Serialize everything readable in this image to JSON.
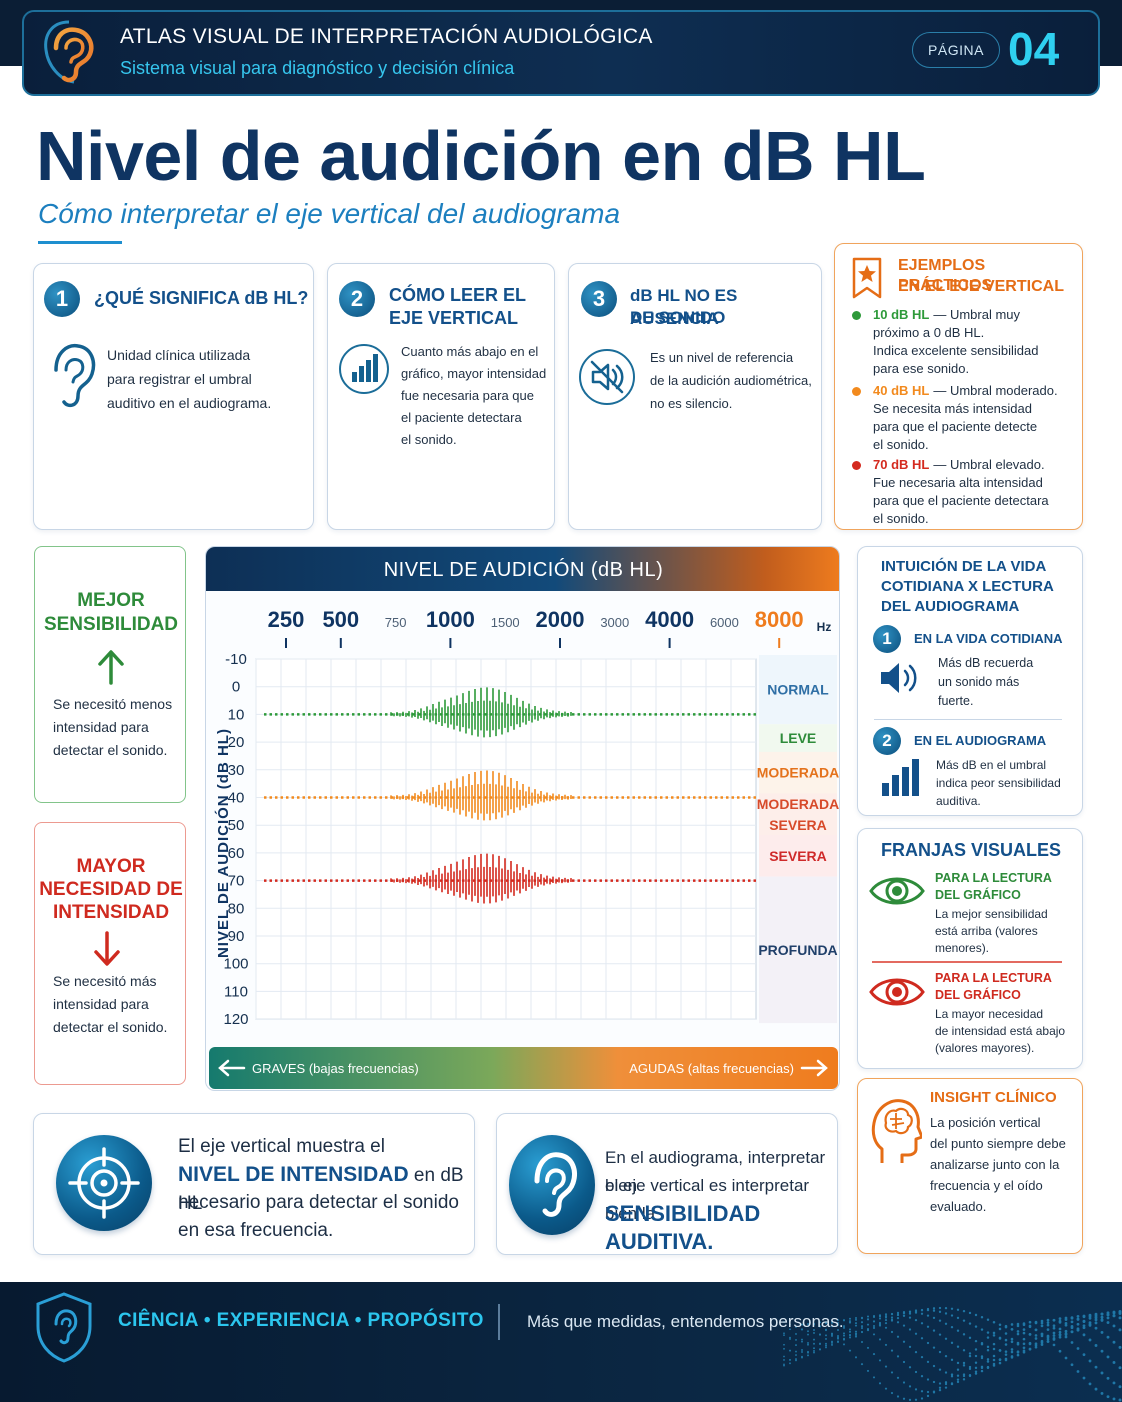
{
  "header": {
    "title": "ATLAS VISUAL DE INTERPRETACIÓN AUDIOLÓGICA",
    "subtitle": "Sistema visual para diagnóstico y decisión clínica",
    "page_label": "PÁGINA",
    "page_number": "04"
  },
  "title": {
    "main": "Nivel de audición en dB HL",
    "subtitle": "Cómo interpretar el eje vertical del audiograma"
  },
  "cards": [
    {
      "number": "1",
      "title_lines": [
        "¿QUÉ SIGNIFICA dB HL?"
      ],
      "icon": "ear-icon",
      "text_lines": [
        "Unidad clínica utilizada",
        "para registrar el umbral",
        "auditivo en el audiograma."
      ]
    },
    {
      "number": "2",
      "title_lines": [
        "CÓMO LEER EL",
        "EJE VERTICAL"
      ],
      "icon": "bar-chart-icon",
      "text_lines": [
        "Cuanto más abajo en el",
        "gráfico, mayor intensidad",
        "fue necesaria para que",
        "el paciente detectara",
        "el sonido."
      ]
    },
    {
      "number": "3",
      "title_lines": [
        "dB HL NO ES AUSENCIA",
        "DE SONIDO"
      ],
      "icon": "muted-speaker-icon",
      "text_lines": [
        "Es un nivel de referencia",
        "de la audición audiométrica,",
        "no es silencio."
      ]
    }
  ],
  "examples": {
    "title_lines": [
      "EJEMPLOS PRÁCTICOS",
      "EN EL EJE VERTICAL"
    ],
    "icon": "star-badge-icon",
    "items": [
      {
        "color": "#2e9a3a",
        "value": "10 dB HL",
        "lines": [
          "— Umbral muy",
          "próximo a 0 dB HL.",
          "Indica excelente sensibilidad",
          "para ese sonido."
        ]
      },
      {
        "color": "#f28a1e",
        "value": "40 dB HL",
        "lines": [
          "— Umbral moderado.",
          "Se necesita más intensidad",
          "para que el paciente detecte",
          "el sonido."
        ]
      },
      {
        "color": "#d42a1f",
        "value": "70 dB HL",
        "lines": [
          "— Umbral elevado.",
          "Fue necesaria alta intensidad",
          "para que el paciente detectara",
          "el sonido."
        ]
      }
    ]
  },
  "better": {
    "title_lines": [
      "MEJOR",
      "SENSIBILIDAD"
    ],
    "arrow": "arrow-up-icon",
    "text_lines": [
      "Se necesitó menos",
      "intensidad para",
      "detectar el sonido."
    ],
    "color": "#2e8b3a"
  },
  "worse": {
    "title_lines": [
      "MAYOR",
      "NECESIDAD DE",
      "INTENSIDAD"
    ],
    "arrow": "arrow-down-icon",
    "text_lines": [
      "Se necesitó más",
      "intensidad para",
      "detectar el sonido."
    ],
    "color": "#cf2a1f"
  },
  "chart_data": {
    "type": "line",
    "title": "NIVEL DE AUDICIÓN (dB HL)",
    "ylabel": "NIVEL DE AUDICIÓN (dB HL)",
    "x_unit": "Hz",
    "x_ticks": [
      {
        "label": "250",
        "major": true
      },
      {
        "label": "500",
        "major": true
      },
      {
        "label": "750",
        "major": false
      },
      {
        "label": "1000",
        "major": true
      },
      {
        "label": "1500",
        "major": false
      },
      {
        "label": "2000",
        "major": true
      },
      {
        "label": "3000",
        "major": false
      },
      {
        "label": "4000",
        "major": true
      },
      {
        "label": "6000",
        "major": false
      },
      {
        "label": "8000",
        "major": true
      }
    ],
    "y_ticks": [
      -10,
      0,
      10,
      20,
      30,
      40,
      50,
      60,
      70,
      80,
      90,
      100,
      110,
      120
    ],
    "ylim": [
      -10,
      120
    ],
    "y_inverted": true,
    "bands": [
      {
        "label": "NORMAL",
        "from": -10,
        "to": 15,
        "color": "#2f6fa5",
        "fill": "#eef6fc"
      },
      {
        "label": "LEVE",
        "from": 15,
        "to": 25,
        "color": "#2e8b3a",
        "fill": "#f1f9ef"
      },
      {
        "label": "MODERADA",
        "from": 25,
        "to": 40,
        "color": "#e4721c",
        "fill": "#fdf3ea"
      },
      {
        "label": "MODERADA SEVERA",
        "from": 40,
        "to": 55,
        "color": "#d74a2a",
        "fill": "#fdeeea"
      },
      {
        "label": "SEVERA",
        "from": 55,
        "to": 70,
        "color": "#cf2a2a",
        "fill": "#fdecec"
      },
      {
        "label": "PROFUNDA",
        "from": 70,
        "to": 120,
        "color": "#20406a",
        "fill": "#f3f1f7"
      }
    ],
    "series": [
      {
        "value": 10,
        "color": "#2e9a3a"
      },
      {
        "value": 40,
        "color": "#f28a1e"
      },
      {
        "value": 70,
        "color": "#d42a1f"
      }
    ],
    "bottom_bar": {
      "left": "GRAVES (bajas frecuencias)",
      "right": "AGUDAS (altas frecuencias)"
    }
  },
  "daily": {
    "title_lines": [
      "INTUICIÓN DE LA VIDA",
      "COTIDIANA X LECTURA",
      "DEL AUDIOGRAMA"
    ],
    "items": [
      {
        "number": "1",
        "label": "EN LA VIDA COTIDIANA",
        "icon": "speaker-icon",
        "lines": [
          "Más dB recuerda",
          "un sonido más",
          "fuerte."
        ]
      },
      {
        "number": "2",
        "label": "EN EL AUDIOGRAMA",
        "icon": "bar-chart-icon",
        "lines": [
          "Más dB en el umbral",
          "indica peor sensibilidad",
          "auditiva."
        ]
      }
    ]
  },
  "bands_card": {
    "title": "FRANJAS VISUALES",
    "items": [
      {
        "icon": "eye-green-icon",
        "label_lines": [
          "PARA LA LECTURA",
          "DEL GRÁFICO"
        ],
        "lines": [
          "La mejor sensibilidad",
          "está arriba (valores",
          "menores)."
        ],
        "color": "#2e8b3a"
      },
      {
        "icon": "eye-red-icon",
        "label_lines": [
          "PARA LA LECTURA",
          "DEL GRÁFICO"
        ],
        "lines": [
          "La mayor necesidad",
          "de intensidad está abajo",
          "(valores mayores)."
        ],
        "color": "#cf2a1f"
      }
    ]
  },
  "insight": {
    "title": "INSIGHT CLÍNICO",
    "icon": "head-brain-icon",
    "lines": [
      "La posición vertical",
      "del punto siempre debe",
      "analizarse junto con la",
      "frecuencia y el oído",
      "evaluado."
    ]
  },
  "summary_left": {
    "icon": "target-icon",
    "line1": "El eje vertical muestra el",
    "strong": "NIVEL DE INTENSIDAD",
    "line2_rest": " en dB HL",
    "line3": "necesario para detectar el sonido",
    "line4": "en esa frecuencia."
  },
  "summary_right": {
    "icon": "ear-icon",
    "line1": "En el audiograma, interpretar bien",
    "line2": "el eje vertical es interpretar bien la",
    "strong": "SENSIBILIDAD AUDITIVA."
  },
  "footer": {
    "motto": "CIÊNCIA  •  EXPERIENCIA  •  PROPÓSITO",
    "tagline": "Más que medidas, entendemos personas.",
    "icon": "shield-ear-icon"
  }
}
